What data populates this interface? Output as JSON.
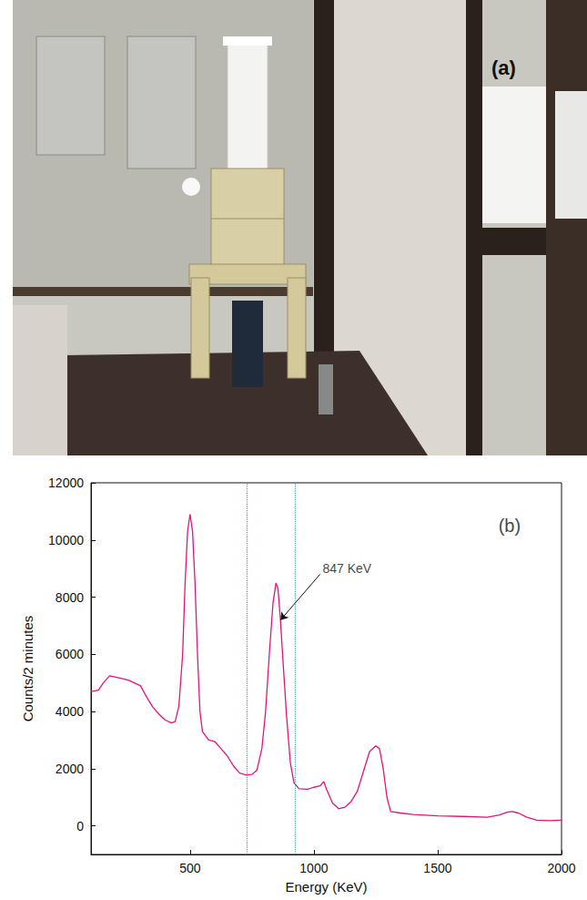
{
  "image_panel": {
    "label": "(a)"
  },
  "chart_data": {
    "type": "line",
    "x_label": "Energy (KeV)",
    "y_label": "Counts/2 minutes",
    "color": "#e0157f",
    "x": [
      100,
      130,
      150,
      175,
      200,
      225,
      250,
      275,
      300,
      325,
      350,
      375,
      400,
      425,
      440,
      455,
      470,
      480,
      490,
      500,
      510,
      520,
      530,
      540,
      550,
      575,
      600,
      625,
      650,
      675,
      700,
      725,
      750,
      770,
      790,
      805,
      820,
      835,
      847,
      855,
      865,
      875,
      890,
      905,
      920,
      940,
      975,
      1000,
      1025,
      1040,
      1050,
      1075,
      1100,
      1125,
      1150,
      1175,
      1200,
      1225,
      1250,
      1265,
      1280,
      1295,
      1310,
      1350,
      1400,
      1500,
      1600,
      1700,
      1750,
      1780,
      1800,
      1825,
      1860,
      1900,
      1950,
      2000
    ],
    "values": [
      4700,
      4750,
      5000,
      5250,
      5200,
      5150,
      5100,
      5000,
      4900,
      4500,
      4150,
      3900,
      3700,
      3600,
      3650,
      4200,
      6000,
      8500,
      10300,
      10900,
      10300,
      8500,
      6000,
      4000,
      3300,
      3000,
      2950,
      2700,
      2450,
      2100,
      1850,
      1780,
      1800,
      1950,
      2700,
      4000,
      6000,
      7800,
      8500,
      8300,
      7200,
      5800,
      3800,
      2200,
      1500,
      1300,
      1280,
      1350,
      1400,
      1550,
      1300,
      800,
      600,
      650,
      850,
      1200,
      1900,
      2600,
      2800,
      2700,
      2000,
      1000,
      500,
      450,
      400,
      350,
      330,
      300,
      380,
      480,
      500,
      450,
      300,
      200,
      180,
      200
    ],
    "xlim": [
      100,
      2000
    ],
    "xticks": [
      500,
      1000,
      1500,
      2000
    ],
    "ylim": [
      -1000,
      12000
    ],
    "yticks": [
      0,
      2000,
      4000,
      6000,
      8000,
      10000,
      12000
    ],
    "vlines": [
      730,
      925
    ],
    "vline_color": "#3aa6a0",
    "annotations": [
      {
        "text": "847 KeV",
        "x": 1035,
        "y": 9000,
        "arrow_to": [
          865,
          7200
        ]
      },
      {
        "text": "(b)",
        "x": 1790,
        "y": 10500
      }
    ],
    "grid": false
  }
}
